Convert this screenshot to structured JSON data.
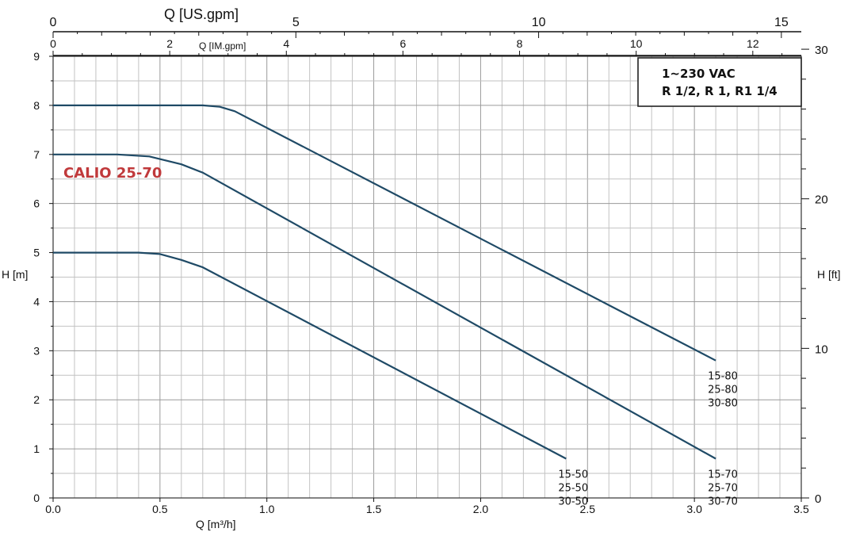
{
  "chart_data": {
    "type": "line",
    "title": "CALIO 25-70",
    "title_color": "#c0393b",
    "curve_color": "#1f4a66",
    "xlabel": "Q [m³/h]",
    "ylabel": "H [m]",
    "y2label": "H [ft]",
    "x2label_us": "Q [US.gpm]",
    "x2label_im": "Q [IM.gpm]",
    "xlim": [
      0,
      3.5
    ],
    "ylim": [
      0,
      9
    ],
    "xticks": [
      "0.0",
      "0.5",
      "1.0",
      "1.5",
      "2.0",
      "2.5",
      "3.0",
      "3.5"
    ],
    "yticks": [
      "0",
      "1",
      "2",
      "3",
      "4",
      "5",
      "6",
      "7",
      "8",
      "9"
    ],
    "y2ticks": [
      "0",
      "10",
      "20",
      "30"
    ],
    "us_gpm_ticks": [
      "0",
      "5",
      "10",
      "15"
    ],
    "im_gpm_ticks": [
      "0",
      "2",
      "4",
      "6",
      "8",
      "10",
      "12"
    ],
    "grid": true,
    "info_box": {
      "line1": "1~230 VAC",
      "line2": "R 1/2, R 1, R1 1/4"
    },
    "series": [
      {
        "labels": [
          "15-80",
          "25-80",
          "30-80"
        ],
        "x": [
          0,
          0.7,
          0.78,
          0.85,
          3.1
        ],
        "y": [
          8.0,
          8.0,
          7.97,
          7.88,
          2.8
        ]
      },
      {
        "labels": [
          "15-70",
          "25-70",
          "30-70"
        ],
        "x": [
          0,
          0.3,
          0.45,
          0.6,
          0.7,
          3.1
        ],
        "y": [
          7.0,
          7.0,
          6.96,
          6.8,
          6.63,
          0.8
        ]
      },
      {
        "labels": [
          "15-50",
          "25-50",
          "30-50"
        ],
        "x": [
          0,
          0.4,
          0.5,
          0.6,
          0.7,
          2.4
        ],
        "y": [
          5.0,
          5.0,
          4.97,
          4.85,
          4.7,
          0.8
        ]
      }
    ]
  }
}
